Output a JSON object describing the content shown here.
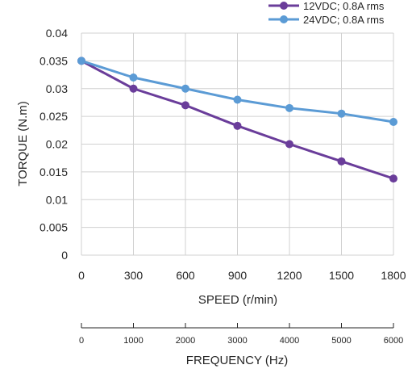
{
  "chart_data": {
    "type": "line",
    "title": "",
    "xlabel": "SPEED (r/min)",
    "ylabel": "TORQUE (N.m)",
    "categories": [
      "0",
      "300",
      "600",
      "900",
      "1200",
      "1500",
      "1800"
    ],
    "ylim": [
      0,
      0.04
    ],
    "yticks": [
      "0",
      "0.005",
      "0.01",
      "0.015",
      "0.02",
      "0.025",
      "0.03",
      "0.035",
      "0.04"
    ],
    "grid": true,
    "legend_position": "top-right",
    "series": [
      {
        "name": "12VDC; 0.8A rms",
        "color": "#6a3d9a",
        "values": [
          0.035,
          0.03,
          0.027,
          0.0233,
          0.02,
          0.0169,
          0.0138
        ]
      },
      {
        "name": "24VDC; 0.8A rms",
        "color": "#5b9bd5",
        "values": [
          0.035,
          0.032,
          0.03,
          0.028,
          0.0265,
          0.0255,
          0.024
        ]
      }
    ],
    "secondary_axis": {
      "label": "FREQUENCY (Hz)",
      "ticks": [
        "0",
        "1000",
        "2000",
        "3000",
        "4000",
        "5000",
        "6000"
      ]
    }
  }
}
